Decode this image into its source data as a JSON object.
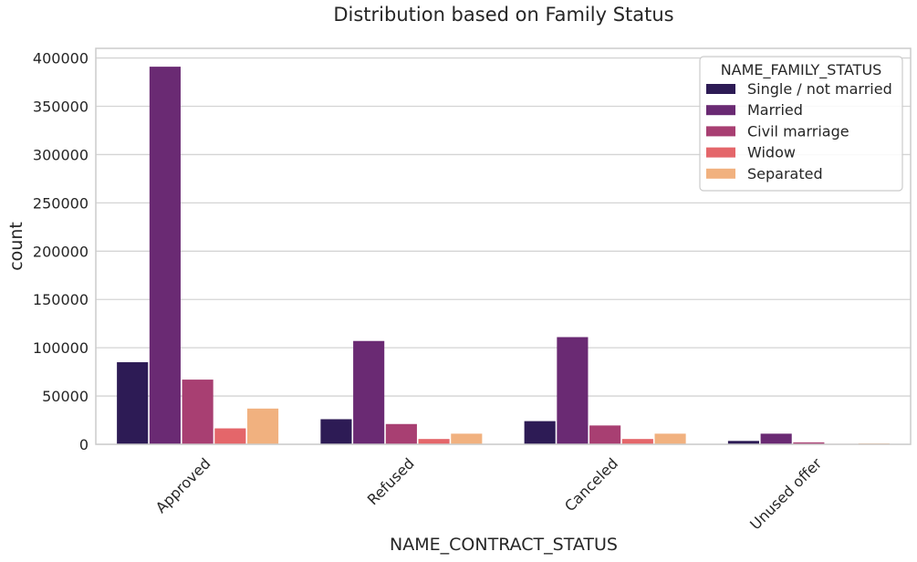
{
  "chart_data": {
    "type": "bar",
    "title": "Distribution based on Family Status",
    "xlabel": "NAME_CONTRACT_STATUS",
    "ylabel": "count",
    "categories": [
      "Approved",
      "Refused",
      "Canceled",
      "Unused offer"
    ],
    "ylim": [
      0,
      410000
    ],
    "yticks": [
      0,
      50000,
      100000,
      150000,
      200000,
      250000,
      300000,
      350000,
      400000
    ],
    "grid": true,
    "legend": {
      "title": "NAME_FAMILY_STATUS",
      "placement": "top-right"
    },
    "series": [
      {
        "name": "Single / not married",
        "color": "#2d1b55",
        "values": [
          85000,
          26000,
          24000,
          3500
        ]
      },
      {
        "name": "Married",
        "color": "#6a2a73",
        "values": [
          391000,
          107000,
          111000,
          11000
        ]
      },
      {
        "name": "Civil marriage",
        "color": "#a83f72",
        "values": [
          67000,
          21000,
          19500,
          2000
        ]
      },
      {
        "name": "Widow",
        "color": "#e4666a",
        "values": [
          16500,
          5500,
          5500,
          500
        ]
      },
      {
        "name": "Separated",
        "color": "#f1b17f",
        "values": [
          37000,
          11000,
          11000,
          1000
        ]
      }
    ]
  }
}
